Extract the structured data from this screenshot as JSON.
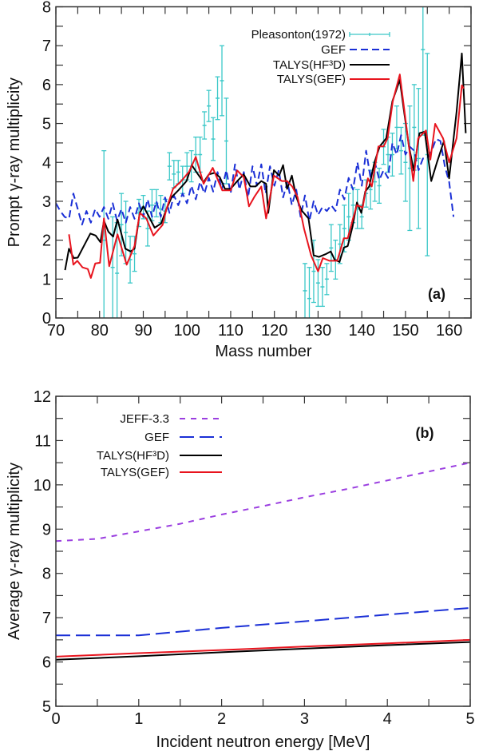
{
  "chart_data": [
    {
      "type": "line",
      "panel_label": "(a)",
      "xlabel": "Mass number",
      "ylabel": "Prompt γ-ray multiplicity",
      "xlim": [
        70,
        165
      ],
      "ylim": [
        0,
        8
      ],
      "xticks": [
        70,
        80,
        90,
        100,
        110,
        120,
        130,
        140,
        150,
        160
      ],
      "yticks": [
        0,
        1,
        2,
        3,
        4,
        5,
        6,
        7,
        8
      ],
      "legend_position": "top-right",
      "series": [
        {
          "name": "Pleasonton(1972)",
          "style": "errorbar",
          "color": "#3cc8c8",
          "points": [
            [
              81,
              2.0,
              2.3
            ],
            [
              83,
              1.3,
              1.3
            ],
            [
              84,
              1.15,
              1.3
            ],
            [
              85,
              2.4,
              0.8
            ],
            [
              86,
              2.2,
              0.8
            ],
            [
              87,
              1.5,
              0.6
            ],
            [
              88,
              1.65,
              0.45
            ],
            [
              89,
              2.7,
              0.35
            ],
            [
              90,
              2.85,
              0.3
            ],
            [
              91,
              2.3,
              0.45
            ],
            [
              92,
              2.9,
              0.4
            ],
            [
              93,
              2.95,
              0.35
            ],
            [
              94,
              2.8,
              0.35
            ],
            [
              95,
              2.75,
              0.3
            ],
            [
              96,
              3.9,
              0.35
            ],
            [
              97,
              3.7,
              0.35
            ],
            [
              98,
              3.75,
              0.3
            ],
            [
              99,
              3.55,
              0.35
            ],
            [
              100,
              3.9,
              0.35
            ],
            [
              101,
              3.9,
              0.4
            ],
            [
              102,
              4.2,
              0.45
            ],
            [
              103,
              4.2,
              0.45
            ],
            [
              104,
              4.95,
              0.35
            ],
            [
              105,
              5.45,
              0.4
            ],
            [
              106,
              4.6,
              0.55
            ],
            [
              107,
              5.65,
              0.55
            ],
            [
              108,
              6.1,
              0.9
            ],
            [
              109,
              4.55,
              1.1
            ],
            [
              127,
              0.7,
              0.7
            ],
            [
              128,
              0.5,
              0.8
            ],
            [
              129,
              1.2,
              0.8
            ],
            [
              130,
              0.9,
              0.6
            ],
            [
              131,
              0.8,
              0.5
            ],
            [
              132,
              1.0,
              0.4
            ],
            [
              133,
              1.8,
              0.6
            ],
            [
              134,
              1.5,
              0.5
            ],
            [
              135,
              1.9,
              0.5
            ],
            [
              136,
              2.3,
              0.6
            ],
            [
              137,
              2.6,
              0.6
            ],
            [
              138,
              2.9,
              0.45
            ],
            [
              139,
              2.8,
              0.5
            ],
            [
              140,
              2.6,
              0.3
            ],
            [
              141,
              3.2,
              0.35
            ],
            [
              142,
              3.3,
              0.5
            ],
            [
              143,
              3.5,
              0.5
            ],
            [
              144,
              3.4,
              0.45
            ],
            [
              145,
              4.4,
              0.45
            ],
            [
              146,
              4.2,
              0.45
            ],
            [
              147,
              4.2,
              0.55
            ],
            [
              148,
              4.9,
              0.55
            ],
            [
              149,
              4.3,
              0.6
            ],
            [
              150,
              4.0,
              1.0
            ],
            [
              151,
              3.85,
              1.6
            ],
            [
              152,
              4.9,
              1.1
            ],
            [
              153,
              4.1,
              1.8
            ],
            [
              154,
              6.9,
              2.2
            ],
            [
              155,
              4.2,
              2.6
            ]
          ]
        },
        {
          "name": "GEF",
          "style": "dashed",
          "color": "#1a2fd6",
          "x": [
            70,
            71,
            72,
            73,
            74,
            75,
            76,
            77,
            78,
            79,
            80,
            81,
            82,
            83,
            84,
            85,
            86,
            87,
            88,
            89,
            90,
            91,
            92,
            93,
            94,
            95,
            96,
            97,
            98,
            99,
            100,
            101,
            102,
            103,
            104,
            105,
            106,
            107,
            108,
            109,
            110,
            111,
            112,
            113,
            114,
            115,
            116,
            117,
            118,
            119,
            120,
            121,
            122,
            123,
            124,
            125,
            126,
            127,
            128,
            129,
            130,
            131,
            132,
            133,
            134,
            135,
            136,
            137,
            138,
            139,
            140,
            141,
            142,
            143,
            144,
            145,
            146,
            147,
            148,
            149,
            150,
            151,
            152,
            153,
            154,
            155,
            156,
            157,
            158,
            159,
            160,
            161
          ],
          "y": [
            2.95,
            2.75,
            2.6,
            2.55,
            3.2,
            2.8,
            2.4,
            2.75,
            2.45,
            2.8,
            2.6,
            2.85,
            2.55,
            2.95,
            2.5,
            2.8,
            2.45,
            2.85,
            2.55,
            2.95,
            2.6,
            3.05,
            2.6,
            3.0,
            2.6,
            3.1,
            2.7,
            3.15,
            2.9,
            3.2,
            2.95,
            3.4,
            3.05,
            3.5,
            3.2,
            3.6,
            3.25,
            3.75,
            3.3,
            3.8,
            3.2,
            3.95,
            3.3,
            3.75,
            3.1,
            3.9,
            3.4,
            3.95,
            3.2,
            3.9,
            3.4,
            3.8,
            3.1,
            3.5,
            2.9,
            3.3,
            2.6,
            3.15,
            2.5,
            3.0,
            2.65,
            2.85,
            2.75,
            2.9,
            2.75,
            3.3,
            3.05,
            3.6,
            3.3,
            4.0,
            3.4,
            4.3,
            3.6,
            4.0,
            3.55,
            3.8,
            3.6,
            4.5,
            4.2,
            4.7,
            4.2,
            4.4,
            4.3,
            3.8,
            4.1,
            4.1,
            4.3,
            4.6,
            4.55,
            3.9,
            3.5,
            2.6
          ]
        },
        {
          "name": "TALYS(HF³D)",
          "style": "solid",
          "color": "#000000",
          "x": [
            72.1,
            73,
            74.1,
            75,
            76.4,
            77.9,
            79.1,
            80.2,
            81,
            82,
            83.1,
            84.1,
            85.9,
            87.1,
            88,
            89.2,
            90,
            91,
            92.6,
            94.1,
            95.3,
            96.5,
            98,
            99.9,
            101.1,
            102.3,
            103.8,
            105,
            106.3,
            107.5,
            108.7,
            110,
            111.5,
            113,
            114.5,
            115.7,
            117,
            118.1,
            118.6,
            119.9,
            121.1,
            122,
            122.9,
            124,
            125,
            126.2,
            127.8,
            129,
            130.2,
            131.7,
            132.9,
            133.8,
            134.9,
            135.9,
            136.8,
            137.9,
            138.9,
            139.9,
            140.8,
            141.7,
            142.9,
            144.1,
            145.6,
            147,
            148.7,
            149.6,
            150.8,
            151.9,
            153.2,
            154.4,
            155.9,
            157.2,
            158.8,
            160,
            161.7,
            162.9,
            163.8
          ],
          "y": [
            1.23,
            1.78,
            1.54,
            1.55,
            1.85,
            2.17,
            2.12,
            1.95,
            2.5,
            2.22,
            2.09,
            2.53,
            1.78,
            1.71,
            1.78,
            2.7,
            2.87,
            2.67,
            2.32,
            2.43,
            2.8,
            3.11,
            3.28,
            3.52,
            3.93,
            3.73,
            3.49,
            3.69,
            3.73,
            3.62,
            3.32,
            3.32,
            3.52,
            3.69,
            3.38,
            3.38,
            3.52,
            3.45,
            2.7,
            3.8,
            3.66,
            3.93,
            3.32,
            3.66,
            3.11,
            2.77,
            2.56,
            1.61,
            1.57,
            1.64,
            1.71,
            1.5,
            1.44,
            1.81,
            1.85,
            2.36,
            2.97,
            2.7,
            3.25,
            3.38,
            4.0,
            4.41,
            4.62,
            5.57,
            6.12,
            5.37,
            4.41,
            3.79,
            4.75,
            4.79,
            3.52,
            4.0,
            4.55,
            3.59,
            5.3,
            6.8,
            4.75
          ]
        },
        {
          "name": "TALYS(GEF)",
          "style": "solid",
          "color": "#e8141e",
          "x": [
            73,
            74,
            74.9,
            76.1,
            77.3,
            78,
            79,
            80.1,
            81,
            82.2,
            84.1,
            86.2,
            88,
            89.2,
            90.7,
            92.3,
            94.4,
            95.3,
            96.8,
            98.7,
            100.5,
            102,
            103.8,
            105.9,
            108.1,
            110,
            111.5,
            113,
            114.2,
            115.4,
            117,
            118.1,
            119.9,
            121.7,
            122.9,
            124.1,
            125.3,
            126.8,
            128.4,
            130,
            131.1,
            132.6,
            134.4,
            135.9,
            136.8,
            138,
            138.9,
            140.2,
            141.4,
            142.3,
            143.8,
            145,
            145.9,
            147.1,
            148.7,
            150.1,
            151.8,
            152.9,
            154.7,
            155.7,
            156.8,
            158.6,
            160,
            161.7,
            162.9,
            163.3
          ],
          "y": [
            2.15,
            1.37,
            1.47,
            1.3,
            1.26,
            1.03,
            1.4,
            1.42,
            2.56,
            1.33,
            2.15,
            1.37,
            1.85,
            2.7,
            2.56,
            2.12,
            2.39,
            2.8,
            3.32,
            3.52,
            3.76,
            4.14,
            3.45,
            3.86,
            3.28,
            3.28,
            3.79,
            3.62,
            2.87,
            3.11,
            3.38,
            2.56,
            3.66,
            3.52,
            3.52,
            3.38,
            3.11,
            2.29,
            1.61,
            1.2,
            1.54,
            1.47,
            1.47,
            2.05,
            2.05,
            2.56,
            2.9,
            2.84,
            3.59,
            3.38,
            4.41,
            4.41,
            4.62,
            5.57,
            6.26,
            5.03,
            3.52,
            4.62,
            4.82,
            4.07,
            4.99,
            4.62,
            4.0,
            4.62,
            5.98,
            5.9
          ]
        }
      ]
    },
    {
      "type": "line",
      "panel_label": "(b)",
      "xlabel": "Incident neutron energy [MeV]",
      "ylabel": "Average γ-ray multiplicity",
      "xlim": [
        0,
        5
      ],
      "ylim": [
        5,
        12
      ],
      "xticks": [
        0,
        1,
        2,
        3,
        4,
        5
      ],
      "yticks": [
        5,
        6,
        7,
        8,
        9,
        10,
        11,
        12
      ],
      "legend_position": "top-left",
      "series": [
        {
          "name": "JEFF-3.3",
          "style": "short-dashed",
          "color": "#9b3fe0",
          "x": [
            0,
            0.5,
            1,
            1.5,
            2,
            2.5,
            3,
            3.5,
            4,
            4.5,
            5
          ],
          "y": [
            8.73,
            8.78,
            8.95,
            9.12,
            9.33,
            9.52,
            9.72,
            9.9,
            10.1,
            10.3,
            10.5
          ]
        },
        {
          "name": "GEF",
          "style": "long-dashed",
          "color": "#1a2fd6",
          "x": [
            0,
            1,
            2,
            3,
            4,
            5
          ],
          "y": [
            6.6,
            6.6,
            6.77,
            6.92,
            7.07,
            7.22
          ]
        },
        {
          "name": "TALYS(HF³D)",
          "style": "solid",
          "color": "#000000",
          "x": [
            0,
            1,
            2,
            3,
            4,
            5
          ],
          "y": [
            6.05,
            6.13,
            6.22,
            6.3,
            6.38,
            6.45
          ]
        },
        {
          "name": "TALYS(GEF)",
          "style": "solid",
          "color": "#e8141e",
          "x": [
            0,
            1,
            2,
            3,
            4,
            5
          ],
          "y": [
            6.12,
            6.2,
            6.27,
            6.35,
            6.42,
            6.5
          ]
        }
      ]
    }
  ]
}
